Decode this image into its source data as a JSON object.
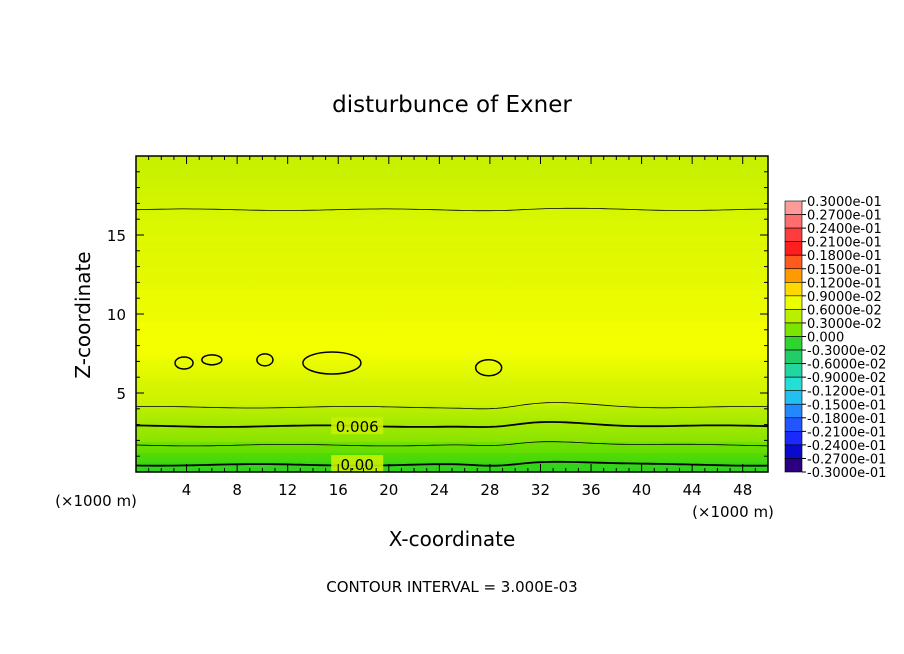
{
  "chart_data": {
    "type": "heatmap",
    "title": "disturbunce of Exner",
    "xlabel": "X-coordinate",
    "ylabel": "Z-coordinate",
    "x_unit": "(×1000 m)",
    "y_unit": "(×1000 m)",
    "xlim": [
      0,
      50
    ],
    "ylim": [
      0,
      20
    ],
    "x_ticks": [
      "4",
      "8",
      "12",
      "16",
      "20",
      "24",
      "28",
      "32",
      "36",
      "40",
      "44",
      "48"
    ],
    "y_ticks": [
      "5",
      "10",
      "15"
    ],
    "footer": "CONTOUR INTERVAL = 3.000E-03",
    "contour_labels": [
      {
        "text": "0.006",
        "x": 17.5,
        "z": 2.9
      },
      {
        "text": "0.00",
        "x": 17.5,
        "z": 0.5
      }
    ],
    "closed_contours": [
      {
        "x": 3.8,
        "z": 6.9
      },
      {
        "x": 6.0,
        "z": 7.1
      },
      {
        "x": 10.2,
        "z": 7.1
      },
      {
        "x": 15.5,
        "z": 6.9
      },
      {
        "x": 27.9,
        "z": 6.6
      }
    ],
    "colorbar": {
      "labels": [
        "0.3000e-01",
        "0.2700e-01",
        "0.2400e-01",
        "0.2100e-01",
        "0.1800e-01",
        "0.1500e-01",
        "0.1200e-01",
        "0.9000e-02",
        "0.6000e-02",
        "0.3000e-02",
        "0.000",
        "-0.3000e-02",
        "-0.6000e-02",
        "-0.9000e-02",
        "-0.1200e-01",
        "-0.1500e-01",
        "-0.1800e-01",
        "-0.2100e-01",
        "-0.2400e-01",
        "-0.2700e-01",
        "-0.3000e-01"
      ],
      "colors": [
        "#ff9a9a",
        "#ff6e6e",
        "#ff3c3c",
        "#ff1e1e",
        "#ff5a1e",
        "#ff9a00",
        "#ffd800",
        "#eaff00",
        "#b8f000",
        "#7ae600",
        "#2fd42f",
        "#22cc66",
        "#22d6a0",
        "#22e0d6",
        "#22c0f0",
        "#2288ff",
        "#2255ff",
        "#1a2aff",
        "#0a0acc",
        "#2a0080"
      ]
    }
  }
}
